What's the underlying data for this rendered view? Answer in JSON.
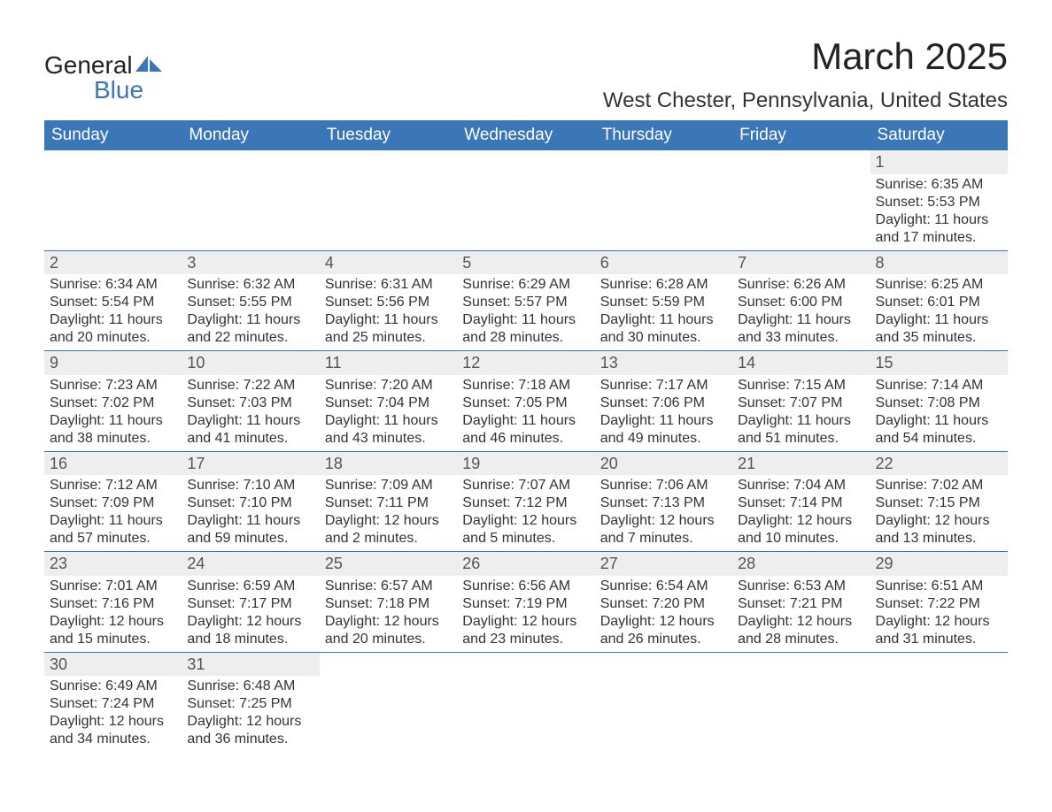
{
  "logo": {
    "text_general": "General",
    "text_blue": "Blue",
    "icon_color": "#3b77b7"
  },
  "title": "March 2025",
  "location": "West Chester, Pennsylvania, United States",
  "colors": {
    "header_bg": "#3b77b7",
    "header_fg": "#ffffff",
    "daynum_bg": "#eeeeee",
    "row_border": "#3b77b7",
    "text": "#333333",
    "background": "#ffffff"
  },
  "typography": {
    "title_fontsize": 42,
    "location_fontsize": 24,
    "header_fontsize": 19,
    "body_fontsize": 16,
    "daynum_fontsize": 18
  },
  "weekday_headers": [
    "Sunday",
    "Monday",
    "Tuesday",
    "Wednesday",
    "Thursday",
    "Friday",
    "Saturday"
  ],
  "weeks": [
    [
      null,
      null,
      null,
      null,
      null,
      null,
      {
        "day": "1",
        "sunrise": "Sunrise: 6:35 AM",
        "sunset": "Sunset: 5:53 PM",
        "daylight": "Daylight: 11 hours and 17 minutes."
      }
    ],
    [
      {
        "day": "2",
        "sunrise": "Sunrise: 6:34 AM",
        "sunset": "Sunset: 5:54 PM",
        "daylight": "Daylight: 11 hours and 20 minutes."
      },
      {
        "day": "3",
        "sunrise": "Sunrise: 6:32 AM",
        "sunset": "Sunset: 5:55 PM",
        "daylight": "Daylight: 11 hours and 22 minutes."
      },
      {
        "day": "4",
        "sunrise": "Sunrise: 6:31 AM",
        "sunset": "Sunset: 5:56 PM",
        "daylight": "Daylight: 11 hours and 25 minutes."
      },
      {
        "day": "5",
        "sunrise": "Sunrise: 6:29 AM",
        "sunset": "Sunset: 5:57 PM",
        "daylight": "Daylight: 11 hours and 28 minutes."
      },
      {
        "day": "6",
        "sunrise": "Sunrise: 6:28 AM",
        "sunset": "Sunset: 5:59 PM",
        "daylight": "Daylight: 11 hours and 30 minutes."
      },
      {
        "day": "7",
        "sunrise": "Sunrise: 6:26 AM",
        "sunset": "Sunset: 6:00 PM",
        "daylight": "Daylight: 11 hours and 33 minutes."
      },
      {
        "day": "8",
        "sunrise": "Sunrise: 6:25 AM",
        "sunset": "Sunset: 6:01 PM",
        "daylight": "Daylight: 11 hours and 35 minutes."
      }
    ],
    [
      {
        "day": "9",
        "sunrise": "Sunrise: 7:23 AM",
        "sunset": "Sunset: 7:02 PM",
        "daylight": "Daylight: 11 hours and 38 minutes."
      },
      {
        "day": "10",
        "sunrise": "Sunrise: 7:22 AM",
        "sunset": "Sunset: 7:03 PM",
        "daylight": "Daylight: 11 hours and 41 minutes."
      },
      {
        "day": "11",
        "sunrise": "Sunrise: 7:20 AM",
        "sunset": "Sunset: 7:04 PM",
        "daylight": "Daylight: 11 hours and 43 minutes."
      },
      {
        "day": "12",
        "sunrise": "Sunrise: 7:18 AM",
        "sunset": "Sunset: 7:05 PM",
        "daylight": "Daylight: 11 hours and 46 minutes."
      },
      {
        "day": "13",
        "sunrise": "Sunrise: 7:17 AM",
        "sunset": "Sunset: 7:06 PM",
        "daylight": "Daylight: 11 hours and 49 minutes."
      },
      {
        "day": "14",
        "sunrise": "Sunrise: 7:15 AM",
        "sunset": "Sunset: 7:07 PM",
        "daylight": "Daylight: 11 hours and 51 minutes."
      },
      {
        "day": "15",
        "sunrise": "Sunrise: 7:14 AM",
        "sunset": "Sunset: 7:08 PM",
        "daylight": "Daylight: 11 hours and 54 minutes."
      }
    ],
    [
      {
        "day": "16",
        "sunrise": "Sunrise: 7:12 AM",
        "sunset": "Sunset: 7:09 PM",
        "daylight": "Daylight: 11 hours and 57 minutes."
      },
      {
        "day": "17",
        "sunrise": "Sunrise: 7:10 AM",
        "sunset": "Sunset: 7:10 PM",
        "daylight": "Daylight: 11 hours and 59 minutes."
      },
      {
        "day": "18",
        "sunrise": "Sunrise: 7:09 AM",
        "sunset": "Sunset: 7:11 PM",
        "daylight": "Daylight: 12 hours and 2 minutes."
      },
      {
        "day": "19",
        "sunrise": "Sunrise: 7:07 AM",
        "sunset": "Sunset: 7:12 PM",
        "daylight": "Daylight: 12 hours and 5 minutes."
      },
      {
        "day": "20",
        "sunrise": "Sunrise: 7:06 AM",
        "sunset": "Sunset: 7:13 PM",
        "daylight": "Daylight: 12 hours and 7 minutes."
      },
      {
        "day": "21",
        "sunrise": "Sunrise: 7:04 AM",
        "sunset": "Sunset: 7:14 PM",
        "daylight": "Daylight: 12 hours and 10 minutes."
      },
      {
        "day": "22",
        "sunrise": "Sunrise: 7:02 AM",
        "sunset": "Sunset: 7:15 PM",
        "daylight": "Daylight: 12 hours and 13 minutes."
      }
    ],
    [
      {
        "day": "23",
        "sunrise": "Sunrise: 7:01 AM",
        "sunset": "Sunset: 7:16 PM",
        "daylight": "Daylight: 12 hours and 15 minutes."
      },
      {
        "day": "24",
        "sunrise": "Sunrise: 6:59 AM",
        "sunset": "Sunset: 7:17 PM",
        "daylight": "Daylight: 12 hours and 18 minutes."
      },
      {
        "day": "25",
        "sunrise": "Sunrise: 6:57 AM",
        "sunset": "Sunset: 7:18 PM",
        "daylight": "Daylight: 12 hours and 20 minutes."
      },
      {
        "day": "26",
        "sunrise": "Sunrise: 6:56 AM",
        "sunset": "Sunset: 7:19 PM",
        "daylight": "Daylight: 12 hours and 23 minutes."
      },
      {
        "day": "27",
        "sunrise": "Sunrise: 6:54 AM",
        "sunset": "Sunset: 7:20 PM",
        "daylight": "Daylight: 12 hours and 26 minutes."
      },
      {
        "day": "28",
        "sunrise": "Sunrise: 6:53 AM",
        "sunset": "Sunset: 7:21 PM",
        "daylight": "Daylight: 12 hours and 28 minutes."
      },
      {
        "day": "29",
        "sunrise": "Sunrise: 6:51 AM",
        "sunset": "Sunset: 7:22 PM",
        "daylight": "Daylight: 12 hours and 31 minutes."
      }
    ],
    [
      {
        "day": "30",
        "sunrise": "Sunrise: 6:49 AM",
        "sunset": "Sunset: 7:24 PM",
        "daylight": "Daylight: 12 hours and 34 minutes."
      },
      {
        "day": "31",
        "sunrise": "Sunrise: 6:48 AM",
        "sunset": "Sunset: 7:25 PM",
        "daylight": "Daylight: 12 hours and 36 minutes."
      },
      null,
      null,
      null,
      null,
      null
    ]
  ]
}
